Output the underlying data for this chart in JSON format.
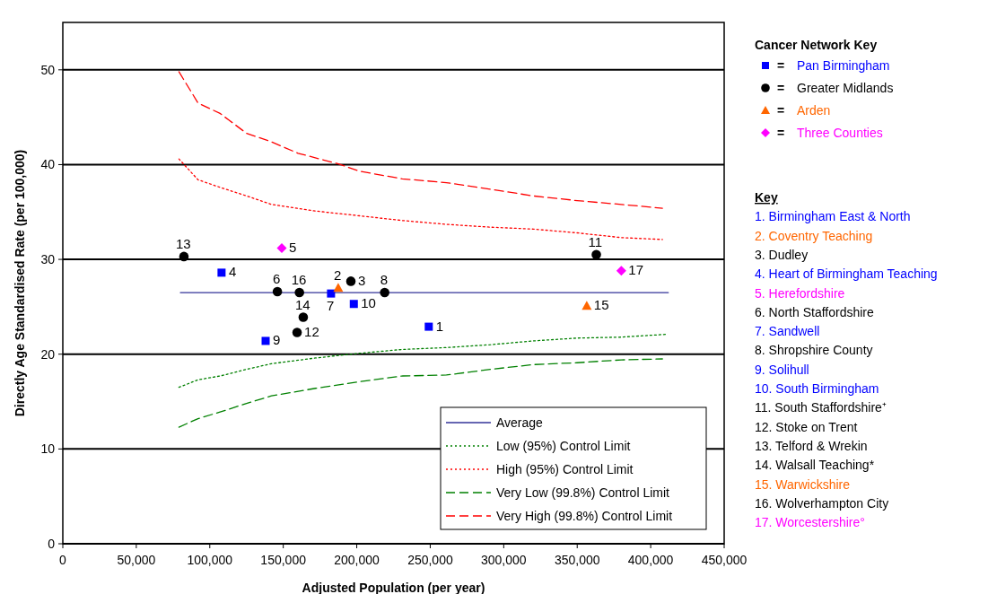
{
  "chart_data": {
    "type": "scatter",
    "xlabel": "Adjusted Population (per year)",
    "ylabel": "Directly Age Standardised Rate (per 100,000)",
    "xlim": [
      0,
      450000
    ],
    "ylim": [
      0,
      55
    ],
    "xticks": [
      0,
      {
        "value": 50000,
        "label": "50,000"
      },
      {
        "value": 100000,
        "label": "100,000"
      },
      {
        "value": 150000,
        "label": "150,000"
      },
      {
        "value": 200000,
        "label": "200,000"
      },
      {
        "value": 250000,
        "label": "250,000"
      },
      {
        "value": 300000,
        "label": "300,000"
      },
      {
        "value": 350000,
        "label": "350,000"
      },
      {
        "value": 400000,
        "label": "400,000"
      },
      {
        "value": 450000,
        "label": "450,000"
      }
    ],
    "yticks": [
      0,
      10,
      20,
      30,
      40,
      50
    ],
    "grid": "y",
    "legend": "bottom right",
    "legend_title": "Cancer Network Key",
    "series": [
      {
        "name": "Pan Birmingham",
        "color": "#0000ff",
        "marker": "square",
        "x": [
          249000,
          108000,
          182500,
          138000,
          198000
        ],
        "values": [
          22.9,
          28.6,
          26.4,
          21.4,
          25.3
        ]
      },
      {
        "name": "Greater Midlands",
        "color": "#000000",
        "marker": "circle",
        "x": [
          196000,
          146000,
          219000,
          363000,
          159400,
          82400,
          163600,
          161000
        ],
        "values": [
          27.7,
          26.6,
          26.5,
          30.5,
          22.3,
          30.3,
          23.9,
          26.5
        ]
      },
      {
        "name": "Arden",
        "color": "#ff6600",
        "marker": "triangle",
        "x": [
          187400,
          356500
        ],
        "values": [
          27.0,
          25.1
        ]
      },
      {
        "name": "Three Counties",
        "color": "#ff00ff",
        "marker": "diamond",
        "x": [
          149000,
          380000
        ],
        "values": [
          31.2,
          28.8
        ]
      },
      {
        "name": "Average",
        "type": "line",
        "color": "#333399",
        "line_style": "solid",
        "x": [
          80000,
          412000
        ],
        "values": [
          26.5,
          26.5
        ]
      },
      {
        "name": "Low (95%) Control Limit",
        "type": "line",
        "color": "#008000",
        "line_style": "dotted",
        "x": [
          79000,
          92000,
          107000,
          125000,
          142000,
          172000,
          202000,
          231000,
          261000,
          291000,
          320000,
          350000,
          380000,
          411000
        ],
        "values": [
          16.5,
          17.3,
          17.7,
          18.4,
          19.0,
          19.6,
          20.1,
          20.5,
          20.7,
          21.0,
          21.4,
          21.7,
          21.8,
          22.1
        ]
      },
      {
        "name": "High (95%) Control Limit",
        "type": "line",
        "color": "#ff0000",
        "line_style": "dotted",
        "x": [
          79000,
          92000,
          107000,
          125000,
          142000,
          172000,
          202000,
          231000,
          261000,
          291000,
          320000,
          350000,
          380000,
          408000
        ],
        "values": [
          40.6,
          38.4,
          37.6,
          36.7,
          35.8,
          35.1,
          34.6,
          34.1,
          33.7,
          33.4,
          33.2,
          32.8,
          32.3,
          32.1
        ]
      },
      {
        "name": "Very Low (99.8%) Control Limit",
        "type": "line",
        "color": "#008000",
        "line_style": "dashed",
        "x": [
          79000,
          92000,
          107000,
          125000,
          142000,
          172000,
          202000,
          231000,
          261000,
          291000,
          320000,
          350000,
          380000,
          408000
        ],
        "values": [
          12.3,
          13.2,
          13.9,
          14.8,
          15.6,
          16.4,
          17.1,
          17.7,
          17.8,
          18.4,
          18.9,
          19.1,
          19.4,
          19.5
        ]
      },
      {
        "name": "Very High (99.8%) Control Limit",
        "type": "line",
        "color": "#ff0000",
        "line_style": "dashed",
        "x": [
          79000,
          92000,
          107000,
          125000,
          142000,
          160000,
          187000,
          202000,
          231000,
          261000,
          291000,
          320000,
          350000,
          380000,
          408000
        ],
        "values": [
          49.8,
          46.5,
          45.4,
          43.3,
          42.4,
          41.2,
          40.1,
          39.3,
          38.5,
          38.1,
          37.4,
          36.7,
          36.2,
          35.8,
          35.4
        ]
      }
    ],
    "annotations": [
      "=",
      "=",
      "=",
      "=",
      "Key",
      "1. Birmingham East & North",
      "2. Coventry Teaching",
      "3. Dudley",
      "4. Heart of Birmingham Teaching",
      "5. Herefordshire",
      "6. North Staffordshire",
      "7. Sandwell",
      "8. Shropshire County",
      "9. Solihull",
      "10. South Birmingham",
      "11. South Staffordshire⁺",
      "12. Stoke on Trent",
      "13. Telford & Wrekin",
      "14. Walsall Teaching*",
      "15. Warwickshire",
      "16. Wolverhampton City",
      "17. Worcestershire°",
      {
        "text": "1",
        "x": 249000,
        "y": 22.9
      },
      {
        "text": "2",
        "x": 187400,
        "y": 27.0
      },
      {
        "text": "3",
        "x": 196000,
        "y": 27.7
      },
      {
        "text": "4",
        "x": 108000,
        "y": 28.6
      },
      {
        "text": "5",
        "x": 149000,
        "y": 31.2
      },
      {
        "text": "6",
        "x": 146000,
        "y": 26.6
      },
      {
        "text": "7",
        "x": 182500,
        "y": 26.4
      },
      {
        "text": "8",
        "x": 219000,
        "y": 26.5
      },
      {
        "text": "9",
        "x": 138000,
        "y": 21.4
      },
      {
        "text": "10",
        "x": 198000,
        "y": 25.3
      },
      {
        "text": "11",
        "x": 363000,
        "y": 30.5
      },
      {
        "text": "12",
        "x": 159400,
        "y": 22.3
      },
      {
        "text": "13",
        "x": 82400,
        "y": 30.3
      },
      {
        "text": "14",
        "x": 163600,
        "y": 23.9
      },
      {
        "text": "15",
        "x": 356500,
        "y": 25.1
      },
      {
        "text": "16",
        "x": 161000,
        "y": 26.5
      },
      {
        "text": "17",
        "x": 380000,
        "y": 28.8
      }
    ]
  }
}
